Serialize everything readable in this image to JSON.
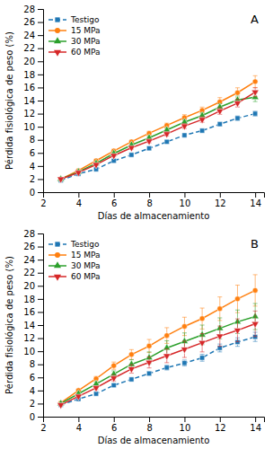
{
  "chart_data": [
    {
      "type": "line",
      "title": "A",
      "x_label": "Días de almacenamiento",
      "y_label": "Pérdida fisiológica de peso (%)",
      "x": [
        3,
        4,
        5,
        6,
        7,
        8,
        9,
        10,
        11,
        12,
        13,
        14
      ],
      "xlim": [
        2,
        14.5
      ],
      "ylim": [
        0,
        28
      ],
      "xticks": [
        2,
        4,
        6,
        8,
        10,
        12,
        14
      ],
      "yticks": [
        0,
        2,
        4,
        6,
        8,
        10,
        12,
        14,
        16,
        18,
        20,
        22,
        24,
        26,
        28
      ],
      "grid": false,
      "legend": "upper left",
      "series": [
        {
          "name": "Testigo",
          "marker": "square",
          "line_style": "dashed",
          "values": [
            1.8,
            2.8,
            3.5,
            4.8,
            5.7,
            6.7,
            7.7,
            8.7,
            9.4,
            10.4,
            11.3,
            12.0
          ],
          "errors": [
            0.08,
            0.1,
            0.12,
            0.15,
            0.18,
            0.2,
            0.22,
            0.25,
            0.28,
            0.3,
            0.35,
            0.38
          ]
        },
        {
          "name": "15 MPa",
          "marker": "circle",
          "line_style": "solid",
          "values": [
            2.0,
            3.3,
            4.8,
            6.3,
            7.7,
            9.0,
            10.2,
            11.4,
            12.5,
            13.8,
            15.2,
            16.9
          ],
          "errors": [
            0.08,
            0.12,
            0.15,
            0.2,
            0.25,
            0.3,
            0.35,
            0.45,
            0.5,
            0.65,
            0.75,
            0.9
          ]
        },
        {
          "name": "30 MPa",
          "marker": "triangle-up",
          "line_style": "solid",
          "values": [
            2.0,
            3.1,
            4.4,
            5.9,
            7.2,
            8.3,
            9.5,
            10.7,
            11.7,
            13.0,
            14.1,
            14.5
          ],
          "errors": [
            0.08,
            0.1,
            0.12,
            0.18,
            0.22,
            0.27,
            0.32,
            0.38,
            0.42,
            0.5,
            0.58,
            0.65
          ]
        },
        {
          "name": "60 MPa",
          "marker": "triangle-down",
          "line_style": "solid",
          "values": [
            2.0,
            3.0,
            4.2,
            5.6,
            6.8,
            7.8,
            8.9,
            10.1,
            11.1,
            12.4,
            13.6,
            15.3
          ],
          "errors": [
            0.08,
            0.1,
            0.12,
            0.18,
            0.22,
            0.27,
            0.32,
            0.38,
            0.42,
            0.5,
            0.58,
            0.65
          ]
        }
      ]
    },
    {
      "type": "line",
      "title": "B",
      "x_label": "Días de almacenamiento",
      "y_label": "Pérdida fisiológica de peso (%)",
      "x": [
        3,
        4,
        5,
        6,
        7,
        8,
        9,
        10,
        11,
        12,
        13,
        14
      ],
      "xlim": [
        2,
        14.5
      ],
      "ylim": [
        0,
        28
      ],
      "xticks": [
        2,
        4,
        6,
        8,
        10,
        12,
        14
      ],
      "yticks": [
        0,
        2,
        4,
        6,
        8,
        10,
        12,
        14,
        16,
        18,
        20,
        22,
        24,
        26,
        28
      ],
      "grid": false,
      "legend": "upper left",
      "series": [
        {
          "name": "Testigo",
          "marker": "square",
          "line_style": "dashed",
          "values": [
            1.8,
            2.7,
            3.5,
            4.8,
            5.7,
            6.6,
            7.5,
            8.2,
            9.0,
            10.5,
            11.4,
            12.2
          ],
          "errors": [
            0.1,
            0.12,
            0.15,
            0.2,
            0.25,
            0.3,
            0.38,
            0.45,
            0.52,
            0.6,
            0.65,
            0.7
          ]
        },
        {
          "name": "15 MPa",
          "marker": "circle",
          "line_style": "solid",
          "values": [
            2.1,
            4.0,
            5.8,
            7.8,
            9.5,
            10.8,
            12.4,
            13.8,
            15.0,
            16.5,
            18.0,
            19.3
          ],
          "errors": [
            0.12,
            0.2,
            0.35,
            0.55,
            0.75,
            1.0,
            1.2,
            1.4,
            1.6,
            1.8,
            2.1,
            2.4
          ]
        },
        {
          "name": "30 MPa",
          "marker": "triangle-up",
          "line_style": "solid",
          "values": [
            2.0,
            3.5,
            5.0,
            6.5,
            8.0,
            9.0,
            10.5,
            11.5,
            12.5,
            13.5,
            14.5,
            15.3
          ],
          "errors": [
            0.1,
            0.15,
            0.3,
            0.5,
            0.7,
            0.9,
            1.1,
            1.3,
            1.5,
            1.6,
            1.8,
            2.0
          ]
        },
        {
          "name": "60 MPa",
          "marker": "triangle-down",
          "line_style": "solid",
          "values": [
            1.8,
            3.1,
            4.4,
            5.9,
            7.3,
            8.3,
            9.3,
            10.3,
            11.3,
            12.3,
            13.2,
            14.2
          ],
          "errors": [
            0.1,
            0.15,
            0.28,
            0.45,
            0.65,
            0.85,
            1.05,
            1.25,
            1.4,
            1.55,
            1.75,
            1.95
          ]
        }
      ]
    }
  ]
}
